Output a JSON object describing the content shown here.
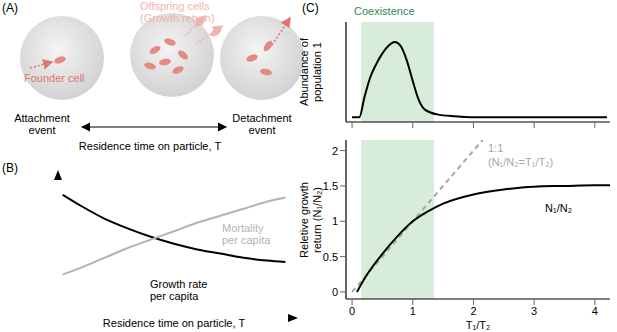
{
  "diagram": {
    "panel": "(A)",
    "founder_cell": "Founder cell",
    "offspring": "Offspring cells\n(Growth return)",
    "attachment": "Attachment\nevent",
    "detachment": "Detachment\nevent",
    "axis_label": "Residence time on particle, T"
  },
  "chart_data": [
    {
      "panel": "(B)",
      "type": "line",
      "x_label": "Residence time on particle, T",
      "xlim": [
        0,
        1
      ],
      "ylim": [
        0,
        1
      ],
      "xticks": [],
      "yticks": [],
      "tick_labels": false,
      "series": [
        {
          "name": "Growth rate\nper capita",
          "color": "#000000",
          "x": [
            0.02,
            0.1,
            0.2,
            0.3,
            0.4,
            0.5,
            0.6,
            0.7,
            0.8,
            0.9,
            0.98
          ],
          "values": [
            0.88,
            0.8,
            0.71,
            0.64,
            0.58,
            0.53,
            0.49,
            0.46,
            0.43,
            0.41,
            0.4
          ]
        },
        {
          "name": "Mortality\nper capita",
          "color": "#b3b3b3",
          "x": [
            0.02,
            0.1,
            0.2,
            0.3,
            0.4,
            0.5,
            0.6,
            0.7,
            0.8,
            0.9,
            0.98
          ],
          "values": [
            0.31,
            0.36,
            0.43,
            0.5,
            0.56,
            0.62,
            0.68,
            0.73,
            0.78,
            0.83,
            0.86
          ]
        }
      ]
    },
    {
      "panel": "(C)",
      "type": "line",
      "y_label": "Abundance of\npopulation 1",
      "xlim": [
        -0.1,
        4.25
      ],
      "ylim": [
        -0.05,
        1
      ],
      "xticks": [
        0,
        1,
        2,
        3,
        4
      ],
      "yticks": [],
      "tick_labels": false,
      "region": {
        "label": "Coexistence",
        "x": [
          0.15,
          1.35
        ],
        "color": "#d7ecda"
      },
      "series": [
        {
          "color": "#000000",
          "x": [
            0,
            0.12,
            0.2,
            0.3,
            0.4,
            0.5,
            0.6,
            0.7,
            0.8,
            0.9,
            1.0,
            1.1,
            1.2,
            1.4,
            1.7,
            2,
            3,
            4.2
          ],
          "values": [
            0,
            0,
            0.2,
            0.42,
            0.56,
            0.67,
            0.75,
            0.79,
            0.75,
            0.6,
            0.38,
            0.18,
            0.08,
            0.03,
            0.01,
            0,
            0,
            0
          ]
        }
      ]
    },
    {
      "type": "line",
      "x_label": "T₁/T₂",
      "y_label": "Reletive growth\nreturn (N₁/N₂)",
      "xlim": [
        -0.1,
        4.25
      ],
      "ylim": [
        -0.1,
        2.15
      ],
      "xticks": [
        0,
        1,
        2,
        3,
        4
      ],
      "yticks": [
        0,
        0.5,
        1,
        1.5,
        2
      ],
      "region": {
        "x": [
          0.15,
          1.35
        ],
        "color": "#d7ecda"
      },
      "series": [
        {
          "name": "1:1\n(N₁/N₂=T₁/T₂)",
          "color": "#a6a6a6",
          "line_style": "dashed",
          "x": [
            0,
            2.15
          ],
          "values": [
            0,
            2.15
          ]
        },
        {
          "name": "N₁/N₂",
          "color": "#000000",
          "x": [
            0.08,
            0.25,
            0.5,
            0.75,
            1,
            1.25,
            1.5,
            2,
            2.5,
            3,
            3.5,
            4,
            4.25
          ],
          "values": [
            0,
            0.25,
            0.54,
            0.79,
            1,
            1.14,
            1.25,
            1.38,
            1.45,
            1.49,
            1.5,
            1.51,
            1.51
          ]
        }
      ]
    }
  ]
}
